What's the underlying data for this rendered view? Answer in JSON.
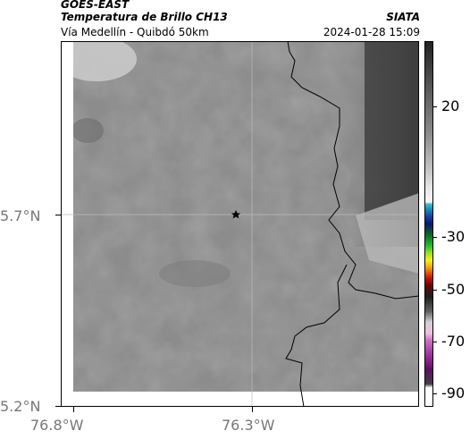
{
  "header": {
    "satellite": "GOES-EAST",
    "product": "Temperatura de Brillo CH13",
    "region": "Vía Medellín - Quibdó 50km",
    "org": "SIATA",
    "datetime": "2024-01-28 15:09"
  },
  "map": {
    "lat_ticks": [
      "5.7°N",
      "5.2°N"
    ],
    "lon_ticks": [
      "76.8°W",
      "76.3°W"
    ],
    "marker": "star-icon",
    "colors": {
      "frame": "#000000",
      "grid": "#bbbbbb",
      "border": "#000000"
    }
  },
  "colorbar": {
    "labels": [
      "20",
      "-30",
      "-50",
      "-70",
      "-90"
    ],
    "values": [
      20,
      -30,
      -50,
      -70,
      -90
    ],
    "range": [
      -95,
      45
    ]
  }
}
